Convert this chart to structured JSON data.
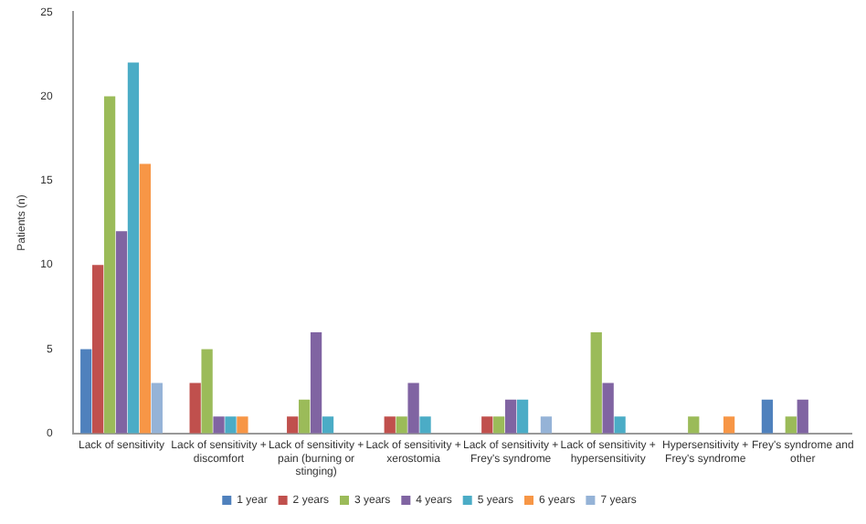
{
  "chart_data": {
    "type": "bar",
    "ylabel": "Patients (n)",
    "categories": [
      "Lack of sensitivity",
      "Lack of sensitivity + discomfort",
      "Lack of sensitivity + pain (burning or stinging)",
      "Lack of sensitivity + xerostomia",
      "Lack of sensitivity + Frey's syndrome",
      "Lack of sensitivity + hypersensitivity",
      "Hypersensitivity + Frey's syndrome",
      "Frey's syndrome and other"
    ],
    "series": [
      {
        "name": "1 year",
        "color": "#4f81bd",
        "values": [
          5,
          0,
          0,
          0,
          0,
          0,
          0,
          2
        ]
      },
      {
        "name": "2 years",
        "color": "#c0504d",
        "values": [
          10,
          3,
          1,
          1,
          1,
          0,
          0,
          0
        ]
      },
      {
        "name": "3 years",
        "color": "#9bbb59",
        "values": [
          20,
          5,
          2,
          1,
          1,
          6,
          1,
          1
        ]
      },
      {
        "name": "4 years",
        "color": "#8064a2",
        "values": [
          12,
          1,
          6,
          3,
          2,
          3,
          0,
          2
        ]
      },
      {
        "name": "5 years",
        "color": "#4bacc6",
        "values": [
          22,
          1,
          1,
          1,
          2,
          1,
          0,
          0
        ]
      },
      {
        "name": "6 years",
        "color": "#f79646",
        "values": [
          16,
          1,
          0,
          0,
          0,
          0,
          1,
          0
        ]
      },
      {
        "name": "7 years",
        "color": "#95b3d7",
        "values": [
          3,
          0,
          0,
          0,
          1,
          0,
          0,
          0
        ]
      }
    ],
    "ylim": [
      0,
      25
    ],
    "yticks": [
      0,
      5,
      10,
      15,
      20,
      25
    ],
    "grid": false,
    "legend": "bottom"
  }
}
